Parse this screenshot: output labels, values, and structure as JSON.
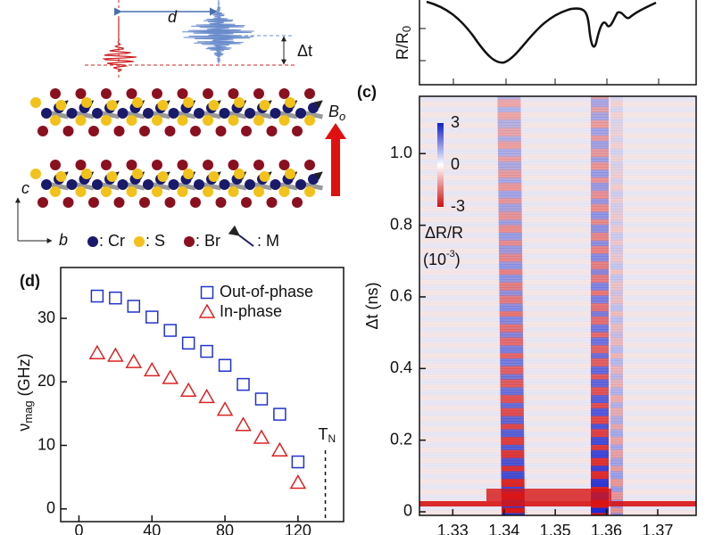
{
  "panel_labels": [
    "(c)",
    "(d)"
  ],
  "schematic": {
    "d": "d",
    "delta_t": "Δt",
    "field": "B",
    "field_sub": "o",
    "axis_c": "c",
    "axis_b": "b",
    "legend": [
      ": Cr",
      ": S",
      ": Br",
      ": M"
    ]
  },
  "reflectance": {
    "ylabel": "R/R",
    "ylabel_sub": "0"
  },
  "chart_data": [
    {
      "type": "heatmap",
      "ylabel": "Δt (ns)",
      "xlim": [
        1.3235,
        1.3775
      ],
      "ylim": [
        -0.01,
        1.16
      ],
      "xticks": [
        1.33,
        1.34,
        1.35,
        1.36,
        1.37
      ],
      "yticks": [
        0,
        0.2,
        0.4,
        0.6,
        0.8,
        {
          "value": 1,
          "label": "1.0"
        }
      ],
      "colorbar": {
        "ticks": [
          3,
          0,
          -3
        ],
        "label": "ΔR/R",
        "unit_open": "(10",
        "unit_sup": "-3",
        "unit_close": ")"
      }
    },
    {
      "type": "scatter",
      "ylabel": "ν",
      "ylabel_sub": "mag",
      "ylabel_rest": " (GHz)",
      "xlim": [
        -10,
        145
      ],
      "ylim": [
        -2,
        38
      ],
      "xticks": [
        0,
        40,
        80,
        120
      ],
      "yticks": [
        0,
        10,
        20,
        30
      ],
      "legend": "upper right",
      "series": [
        {
          "name": "Out-of-phase",
          "color": "#2233cc",
          "marker": "square",
          "x": [
            10,
            20,
            30,
            40,
            50,
            60,
            70,
            80,
            90,
            100,
            110,
            120
          ],
          "values": [
            33.5,
            33.2,
            31.9,
            30.2,
            28.1,
            26.1,
            24.8,
            22.6,
            19.6,
            17.3,
            14.9,
            7.4
          ]
        },
        {
          "name": "In-phase",
          "color": "#dd2222",
          "marker": "triangle",
          "x": [
            10,
            20,
            30,
            40,
            50,
            60,
            70,
            80,
            90,
            100,
            110,
            120
          ],
          "values": [
            24.5,
            24.1,
            23.1,
            21.8,
            20.6,
            18.6,
            17.6,
            15.6,
            13.2,
            11.2,
            9.2,
            4.1
          ]
        }
      ],
      "tn": {
        "label": "T",
        "sub": "N",
        "x": 135
      }
    }
  ]
}
